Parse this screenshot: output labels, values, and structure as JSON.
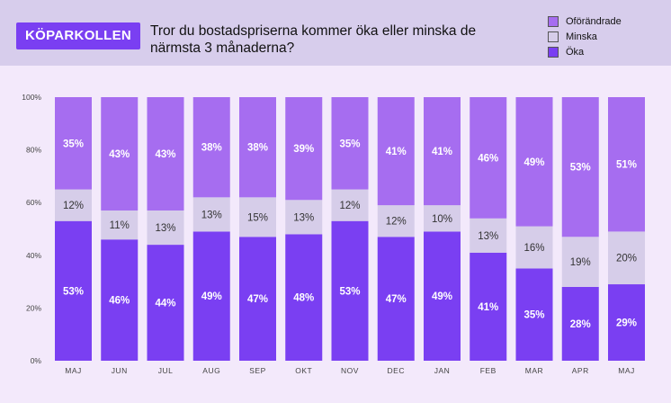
{
  "brand": {
    "label": "KÖPARKOLLEN"
  },
  "title": "Tror du bostadspriserna kommer öka eller minska de närmsta 3 månaderna?",
  "legend": [
    {
      "name": "Oförändrade",
      "color": "#a66df0"
    },
    {
      "name": "Minska",
      "color": "#d6cde9"
    },
    {
      "name": "Öka",
      "color": "#7a3ff2"
    }
  ],
  "chart_data": {
    "type": "bar",
    "stacked": true,
    "title": "Tror du bostadspriserna kommer öka eller minska de närmsta 3 månaderna?",
    "categories": [
      "MAJ",
      "JUN",
      "JUL",
      "AUG",
      "SEP",
      "OKT",
      "NOV",
      "DEC",
      "JAN",
      "FEB",
      "MAR",
      "APR",
      "MAJ"
    ],
    "series": [
      {
        "name": "Öka",
        "color": "#7a3ff2",
        "values": [
          53,
          46,
          44,
          49,
          47,
          48,
          53,
          47,
          49,
          41,
          35,
          28,
          29
        ]
      },
      {
        "name": "Minska",
        "color": "#d6cde9",
        "values": [
          12,
          11,
          13,
          13,
          15,
          13,
          12,
          12,
          10,
          13,
          16,
          19,
          20
        ]
      },
      {
        "name": "Oförändrade",
        "color": "#a66df0",
        "values": [
          35,
          43,
          43,
          38,
          38,
          39,
          35,
          41,
          41,
          46,
          49,
          53,
          51
        ]
      }
    ],
    "yticks": [
      "0%",
      "20%",
      "40%",
      "60%",
      "80%",
      "100%"
    ],
    "ylim": [
      0,
      100
    ],
    "value_suffix": "%",
    "grid": false,
    "legend_position": "top-right"
  }
}
